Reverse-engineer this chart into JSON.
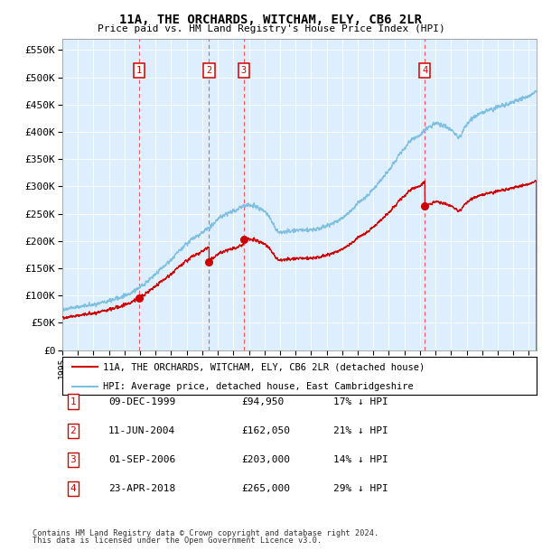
{
  "title1": "11A, THE ORCHARDS, WITCHAM, ELY, CB6 2LR",
  "title2": "Price paid vs. HM Land Registry's House Price Index (HPI)",
  "ylabel_ticks": [
    "£0",
    "£50K",
    "£100K",
    "£150K",
    "£200K",
    "£250K",
    "£300K",
    "£350K",
    "£400K",
    "£450K",
    "£500K",
    "£550K"
  ],
  "ytick_vals": [
    0,
    50000,
    100000,
    150000,
    200000,
    250000,
    300000,
    350000,
    400000,
    450000,
    500000,
    550000
  ],
  "ylim": [
    0,
    570000
  ],
  "xlim_start": 1995.0,
  "xlim_end": 2025.5,
  "transactions": [
    {
      "num": 1,
      "date_str": "09-DEC-1999",
      "year": 1999.94,
      "price": 94950,
      "pct": "17%",
      "dir": "↓"
    },
    {
      "num": 2,
      "date_str": "11-JUN-2004",
      "year": 2004.44,
      "price": 162050,
      "pct": "21%",
      "dir": "↓"
    },
    {
      "num": 3,
      "date_str": "01-SEP-2006",
      "year": 2006.67,
      "price": 203000,
      "pct": "14%",
      "dir": "↓"
    },
    {
      "num": 4,
      "date_str": "23-APR-2018",
      "year": 2018.31,
      "price": 265000,
      "pct": "29%",
      "dir": "↓"
    }
  ],
  "hpi_color": "#7fbfdf",
  "property_color": "#cc0000",
  "background_color": "#ddeeff",
  "grid_color": "#ffffff",
  "transaction_line_color": "#ff5555",
  "box_color": "#cc0000",
  "legend_label_property": "11A, THE ORCHARDS, WITCHAM, ELY, CB6 2LR (detached house)",
  "legend_label_hpi": "HPI: Average price, detached house, East Cambridgeshire",
  "footer1": "Contains HM Land Registry data © Crown copyright and database right 2024.",
  "footer2": "This data is licensed under the Open Government Licence v3.0.",
  "table_data": [
    [
      1,
      "09-DEC-1999",
      "£94,950",
      "17% ↓ HPI"
    ],
    [
      2,
      "11-JUN-2004",
      "£162,050",
      "21% ↓ HPI"
    ],
    [
      3,
      "01-SEP-2006",
      "£203,000",
      "14% ↓ HPI"
    ],
    [
      4,
      "23-APR-2018",
      "£265,000",
      "29% ↓ HPI"
    ]
  ]
}
